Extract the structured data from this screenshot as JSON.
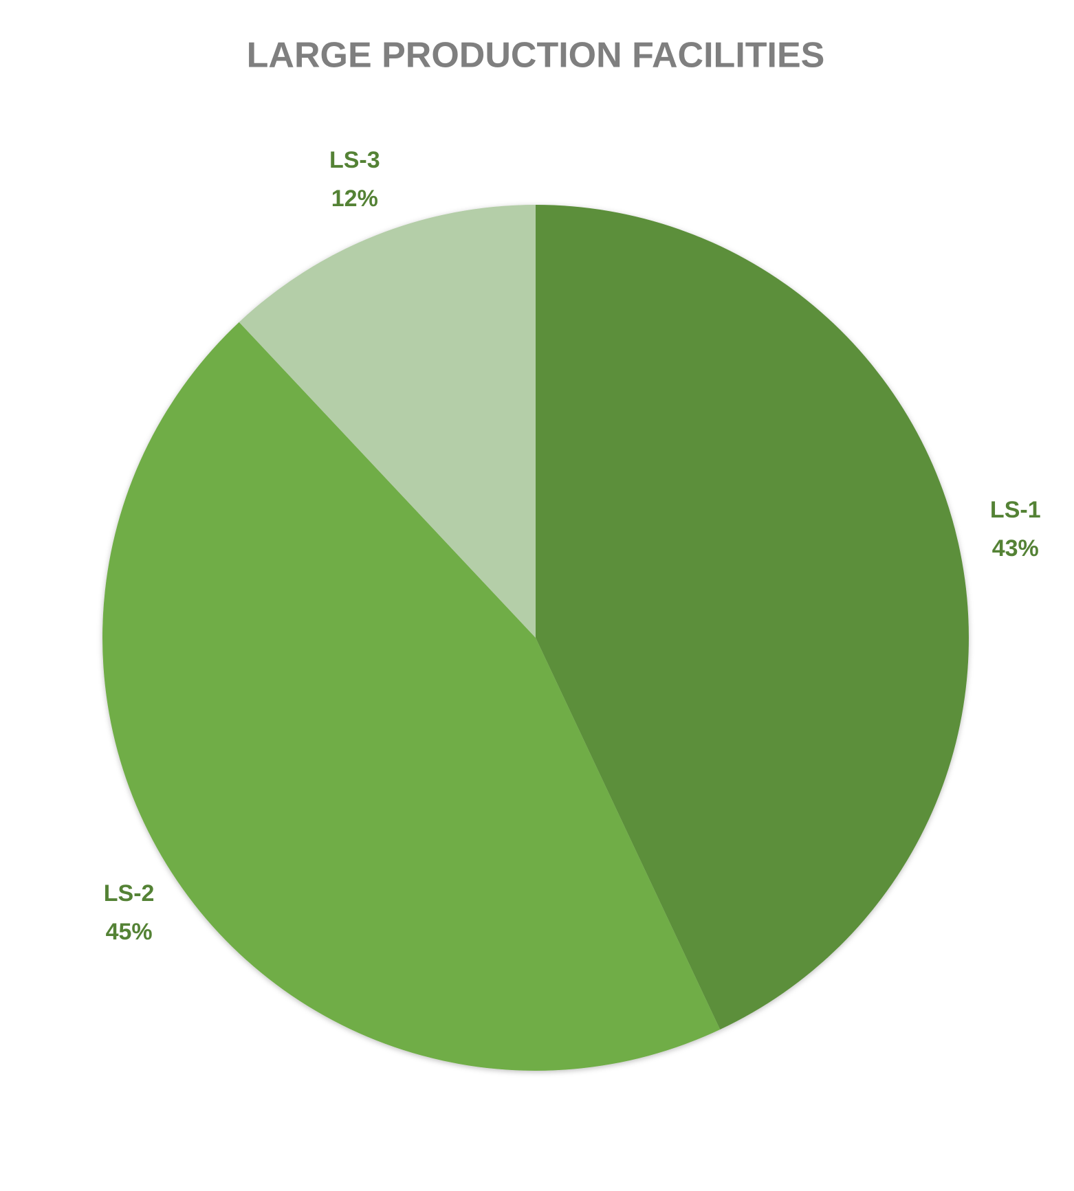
{
  "chart_data": {
    "type": "pie",
    "title": "LARGE PRODUCTION FACILITIES",
    "categories": [
      "LS-1",
      "LS-2",
      "LS-3"
    ],
    "values": [
      43,
      45,
      12
    ],
    "value_labels": [
      "43%",
      "45%",
      "12%"
    ],
    "colors": [
      "#5b8f3a",
      "#70ad47",
      "#b4cea8"
    ]
  }
}
